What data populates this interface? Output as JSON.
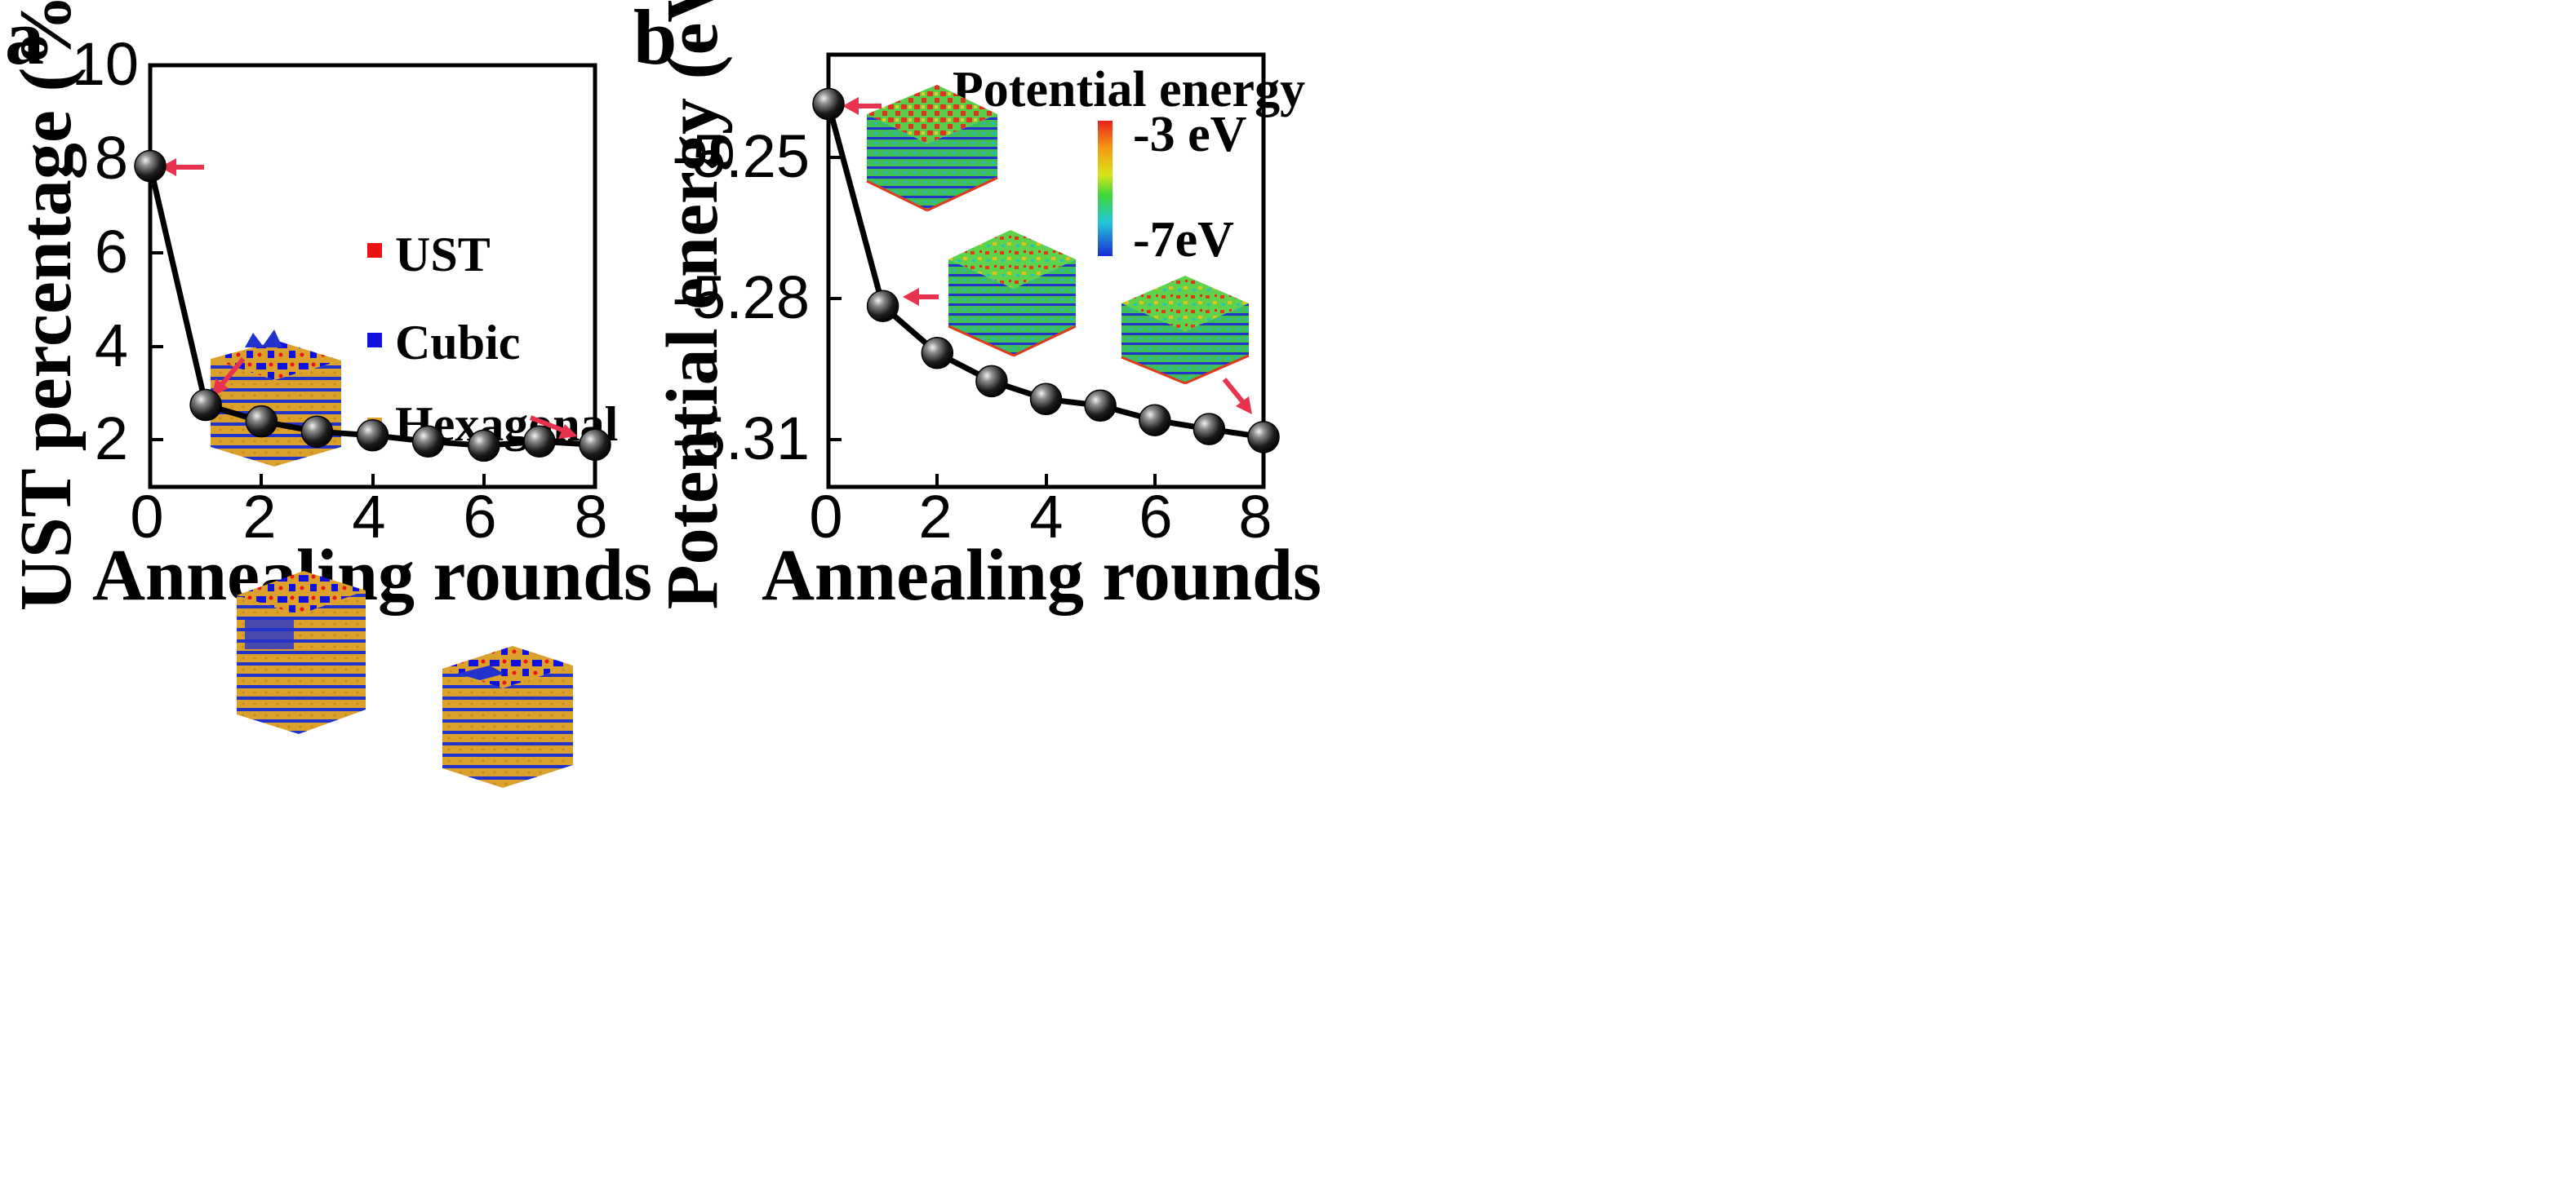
{
  "chart_data": [
    {
      "panel": "a",
      "type": "line",
      "title": "",
      "xlabel": "Annealing rounds",
      "ylabel": "UST percentage (%)",
      "xlim": [
        0,
        8
      ],
      "ylim": [
        1,
        10
      ],
      "xticks": [
        0,
        2,
        4,
        6,
        8
      ],
      "yticks": [
        2,
        4,
        6,
        8,
        10
      ],
      "grid": false,
      "x": [
        0,
        1,
        2,
        3,
        4,
        5,
        6,
        7,
        8
      ],
      "series": [
        {
          "name": "UST percentage",
          "values": [
            7.85,
            2.75,
            2.4,
            2.18,
            2.1,
            1.97,
            1.88,
            1.97,
            1.9
          ]
        }
      ],
      "legend": {
        "placement": "top-right",
        "entries": [
          {
            "label": "UST",
            "color": "#ee1111"
          },
          {
            "label": "Cubic",
            "color": "#1111dd"
          },
          {
            "label": "Hexagonal",
            "color": "#dba12c"
          }
        ]
      },
      "insets": [
        {
          "name": "structure-round-0",
          "points_to_x": 0
        },
        {
          "name": "structure-round-1",
          "points_to_x": 1
        },
        {
          "name": "structure-round-8",
          "points_to_x": 8
        }
      ]
    },
    {
      "panel": "b",
      "type": "line",
      "title": "",
      "xlabel": "Annealing rounds",
      "ylabel": "Potential energy (eV)",
      "xlim": [
        0,
        8
      ],
      "ylim": [
        -5.32,
        -5.228
      ],
      "xticks": [
        0,
        2,
        4,
        6,
        8
      ],
      "yticks": [
        -5.31,
        -5.28,
        -5.25
      ],
      "grid": false,
      "x": [
        0,
        1,
        2,
        3,
        4,
        5,
        6,
        7,
        8
      ],
      "series": [
        {
          "name": "Potential energy",
          "values": [
            -5.2385,
            -5.2815,
            -5.2915,
            -5.2975,
            -5.3013,
            -5.3027,
            -5.3058,
            -5.3077,
            -5.3094
          ]
        }
      ],
      "colorbar": {
        "title": "Potential energy",
        "max_label": "-3 eV",
        "min_label": "-7eV"
      },
      "insets": [
        {
          "name": "energy-map-round-0",
          "points_to_x": 0
        },
        {
          "name": "energy-map-round-1",
          "points_to_x": 1
        },
        {
          "name": "energy-map-round-8",
          "points_to_x": 8
        }
      ]
    }
  ],
  "colors": {
    "line": "#000000",
    "arrow": "#e8334f",
    "ust": "#ee1111",
    "cubic": "#1111dd",
    "hexagonal": "#dba12c"
  }
}
